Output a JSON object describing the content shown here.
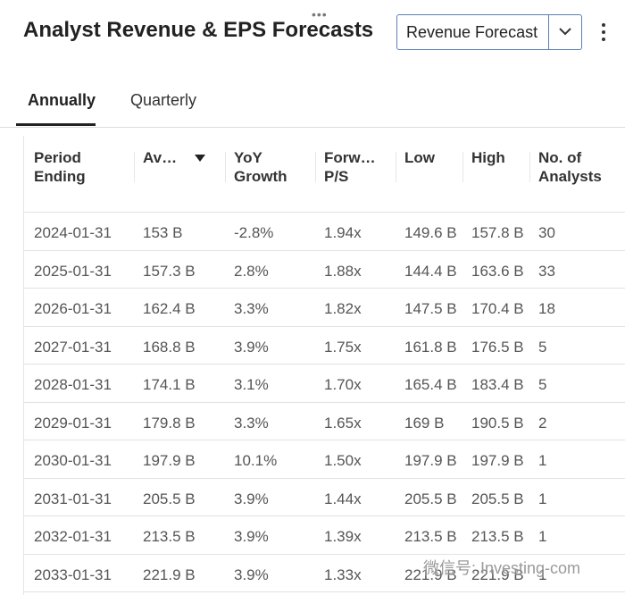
{
  "header": {
    "title": "Analyst Revenue & EPS Forecasts",
    "dropdown": "Revenue Forecast"
  },
  "tabs": [
    "Annually",
    "Quarterly"
  ],
  "table": {
    "columns": [
      [
        "Period",
        "Ending"
      ],
      [
        "Av…"
      ],
      [
        "YoY",
        "Growth"
      ],
      [
        "Forw…",
        "P/S"
      ],
      [
        "Low"
      ],
      [
        "High"
      ],
      [
        "No. of",
        "Analysts"
      ]
    ],
    "rows": [
      [
        "2024-01-31",
        "153 B",
        "-2.8%",
        "1.94x",
        "149.6 B",
        "157.8 B",
        "30"
      ],
      [
        "2025-01-31",
        "157.3 B",
        "2.8%",
        "1.88x",
        "144.4 B",
        "163.6 B",
        "33"
      ],
      [
        "2026-01-31",
        "162.4 B",
        "3.3%",
        "1.82x",
        "147.5 B",
        "170.4 B",
        "18"
      ],
      [
        "2027-01-31",
        "168.8 B",
        "3.9%",
        "1.75x",
        "161.8 B",
        "176.5 B",
        "5"
      ],
      [
        "2028-01-31",
        "174.1 B",
        "3.1%",
        "1.70x",
        "165.4 B",
        "183.4 B",
        "5"
      ],
      [
        "2029-01-31",
        "179.8 B",
        "3.3%",
        "1.65x",
        "169 B",
        "190.5 B",
        "2"
      ],
      [
        "2030-01-31",
        "197.9 B",
        "10.1%",
        "1.50x",
        "197.9 B",
        "197.9 B",
        "1"
      ],
      [
        "2031-01-31",
        "205.5 B",
        "3.9%",
        "1.44x",
        "205.5 B",
        "205.5 B",
        "1"
      ],
      [
        "2032-01-31",
        "213.5 B",
        "3.9%",
        "1.39x",
        "213.5 B",
        "213.5 B",
        "1"
      ],
      [
        "2033-01-31",
        "221.9 B",
        "3.9%",
        "1.33x",
        "221.9 B",
        "221.9 B",
        "1"
      ]
    ]
  },
  "watermark": "微信号: Investing-com"
}
